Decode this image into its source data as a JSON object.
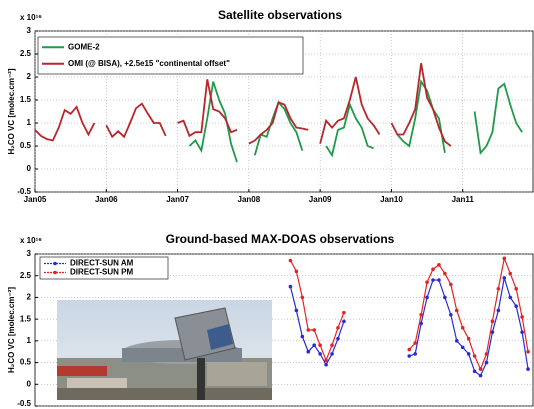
{
  "chart_data": [
    {
      "type": "line",
      "title": "Satellite observations",
      "y_multiplier": "x 10¹⁶",
      "ylabel": "H₂CO VC [molec.cm⁻²]",
      "xlim": [
        "2005-01",
        "2012-01"
      ],
      "ylim": [
        -0.5,
        3
      ],
      "yticks": [
        -0.5,
        0,
        0.5,
        1,
        1.5,
        2,
        2.5,
        3
      ],
      "xticks": [
        {
          "value": "2005-01",
          "label": "Jan05"
        },
        {
          "value": "2006-01",
          "label": "Jan06"
        },
        {
          "value": "2007-01",
          "label": "Jan07"
        },
        {
          "value": "2008-01",
          "label": "Jan08"
        },
        {
          "value": "2009-01",
          "label": "Jan09"
        },
        {
          "value": "2010-01",
          "label": "Jan10"
        },
        {
          "value": "2011-01",
          "label": "Jan11"
        }
      ],
      "grid": true,
      "markers": false,
      "x": [
        "2005-01",
        "2005-02",
        "2005-03",
        "2005-04",
        "2005-05",
        "2005-06",
        "2005-07",
        "2005-08",
        "2005-09",
        "2005-10",
        "2005-11",
        "2005-12",
        "2006-01",
        "2006-02",
        "2006-03",
        "2006-04",
        "2006-05",
        "2006-06",
        "2006-07",
        "2006-08",
        "2006-09",
        "2006-10",
        "2006-11",
        "2006-12",
        "2007-01",
        "2007-02",
        "2007-03",
        "2007-04",
        "2007-05",
        "2007-06",
        "2007-07",
        "2007-08",
        "2007-09",
        "2007-10",
        "2007-11",
        "2007-12",
        "2008-01",
        "2008-02",
        "2008-03",
        "2008-04",
        "2008-05",
        "2008-06",
        "2008-07",
        "2008-08",
        "2008-09",
        "2008-10",
        "2008-11",
        "2008-12",
        "2009-01",
        "2009-02",
        "2009-03",
        "2009-04",
        "2009-05",
        "2009-06",
        "2009-07",
        "2009-08",
        "2009-09",
        "2009-10",
        "2009-11",
        "2009-12",
        "2010-01",
        "2010-02",
        "2010-03",
        "2010-04",
        "2010-05",
        "2010-06",
        "2010-07",
        "2010-08",
        "2010-09",
        "2010-10",
        "2010-11",
        "2010-12",
        "2011-01",
        "2011-02",
        "2011-03",
        "2011-04",
        "2011-05",
        "2011-06",
        "2011-07",
        "2011-08",
        "2011-09",
        "2011-10",
        "2011-11",
        "2011-12"
      ],
      "series": [
        {
          "name": "GOME-2",
          "color": "#1f9a4a",
          "values": [
            null,
            null,
            null,
            null,
            null,
            null,
            null,
            null,
            null,
            null,
            null,
            null,
            null,
            null,
            null,
            null,
            null,
            null,
            null,
            null,
            null,
            null,
            null,
            null,
            null,
            null,
            0.5,
            0.62,
            0.4,
            1.1,
            1.9,
            1.5,
            1.2,
            0.55,
            0.15,
            null,
            null,
            0.3,
            0.75,
            0.7,
            1.1,
            1.45,
            1.3,
            1.0,
            0.8,
            0.4,
            null,
            null,
            null,
            0.5,
            0.3,
            0.85,
            0.9,
            1.4,
            1.1,
            0.9,
            0.5,
            0.45,
            null,
            null,
            null,
            0.75,
            0.6,
            0.5,
            1.1,
            1.9,
            1.7,
            1.3,
            1.1,
            0.35,
            null,
            null,
            null,
            null,
            1.25,
            0.35,
            0.5,
            0.8,
            1.75,
            1.85,
            1.4,
            1.0,
            0.8,
            null
          ]
        },
        {
          "name": "OMI (@ BISA), +2.5e15 \"continental offset\"",
          "color": "#b8262c",
          "values": [
            0.85,
            0.72,
            0.65,
            0.62,
            0.9,
            1.28,
            1.2,
            1.35,
            1.0,
            0.75,
            1.0,
            null,
            0.95,
            0.7,
            0.82,
            0.7,
            1.0,
            1.32,
            1.42,
            1.2,
            1.0,
            1.0,
            0.72,
            null,
            1.0,
            1.05,
            0.72,
            0.8,
            0.8,
            1.95,
            1.3,
            1.25,
            1.1,
            0.8,
            0.85,
            null,
            0.55,
            0.62,
            0.75,
            0.85,
            1.0,
            1.45,
            1.4,
            1.1,
            0.9,
            0.88,
            0.85,
            null,
            0.55,
            1.05,
            0.9,
            1.05,
            1.1,
            1.5,
            2.0,
            1.4,
            1.1,
            0.95,
            0.75,
            null,
            1.0,
            0.75,
            0.75,
            1.0,
            1.3,
            2.3,
            1.55,
            1.3,
            0.9,
            0.6,
            0.5,
            null,
            null,
            null,
            null,
            null,
            null,
            null,
            null,
            null,
            null,
            null,
            null,
            null
          ]
        }
      ]
    },
    {
      "type": "line",
      "title": "Ground-based MAX-DOAS observations",
      "y_multiplier": "x 10¹⁶",
      "ylabel": "H₂CO VC [molec.cm⁻²]",
      "xlim": [
        "2005-01",
        "2012-01"
      ],
      "ylim": [
        -0.5,
        3
      ],
      "yticks": [
        -0.5,
        0,
        0.5,
        1,
        1.5,
        2,
        2.5,
        3
      ],
      "grid": true,
      "markers": true,
      "x": [
        "2008-01",
        "2008-02",
        "2008-03",
        "2008-04",
        "2008-05",
        "2008-06",
        "2008-07",
        "2008-08",
        "2008-09",
        "2008-10",
        "2008-11",
        "2008-12",
        "2009-01",
        "2009-02",
        "2009-03",
        "2009-04",
        "2009-05",
        "2009-06",
        "2009-07",
        "2009-08",
        "2009-09",
        "2009-10",
        "2009-11",
        "2009-12",
        "2010-01",
        "2010-02",
        "2010-03",
        "2010-04",
        "2010-05",
        "2010-06",
        "2010-07",
        "2010-08",
        "2010-09",
        "2010-10",
        "2010-11",
        "2010-12",
        "2011-01",
        "2011-02",
        "2011-03",
        "2011-04",
        "2011-05",
        "2011-06",
        "2011-07",
        "2011-08",
        "2011-09",
        "2011-10",
        "2011-11",
        "2011-12"
      ],
      "series": [
        {
          "name": "DIRECT-SUN AM",
          "color": "#2b2bd6",
          "values": [
            null,
            null,
            null,
            null,
            null,
            null,
            null,
            2.25,
            1.7,
            1.1,
            0.75,
            0.9,
            0.7,
            0.45,
            0.7,
            1.05,
            1.45,
            null,
            null,
            null,
            null,
            null,
            null,
            null,
            null,
            null,
            null,
            0.65,
            0.7,
            1.4,
            2.0,
            2.4,
            2.4,
            2.0,
            1.6,
            1.0,
            0.85,
            0.7,
            0.3,
            0.2,
            0.5,
            1.2,
            1.7,
            2.45,
            2.0,
            1.8,
            1.2,
            0.35
          ]
        },
        {
          "name": "DIRECT-SUN PM",
          "color": "#e42424",
          "values": [
            null,
            null,
            null,
            null,
            null,
            null,
            null,
            2.85,
            2.6,
            2.0,
            1.25,
            1.25,
            0.9,
            0.55,
            0.9,
            1.3,
            1.65,
            null,
            null,
            null,
            null,
            null,
            null,
            null,
            null,
            null,
            null,
            0.8,
            0.95,
            1.6,
            2.35,
            2.65,
            2.75,
            2.55,
            2.3,
            1.7,
            1.3,
            1.05,
            0.65,
            0.35,
            0.7,
            1.45,
            2.2,
            2.9,
            2.55,
            2.2,
            1.55,
            0.75
          ]
        }
      ]
    }
  ]
}
